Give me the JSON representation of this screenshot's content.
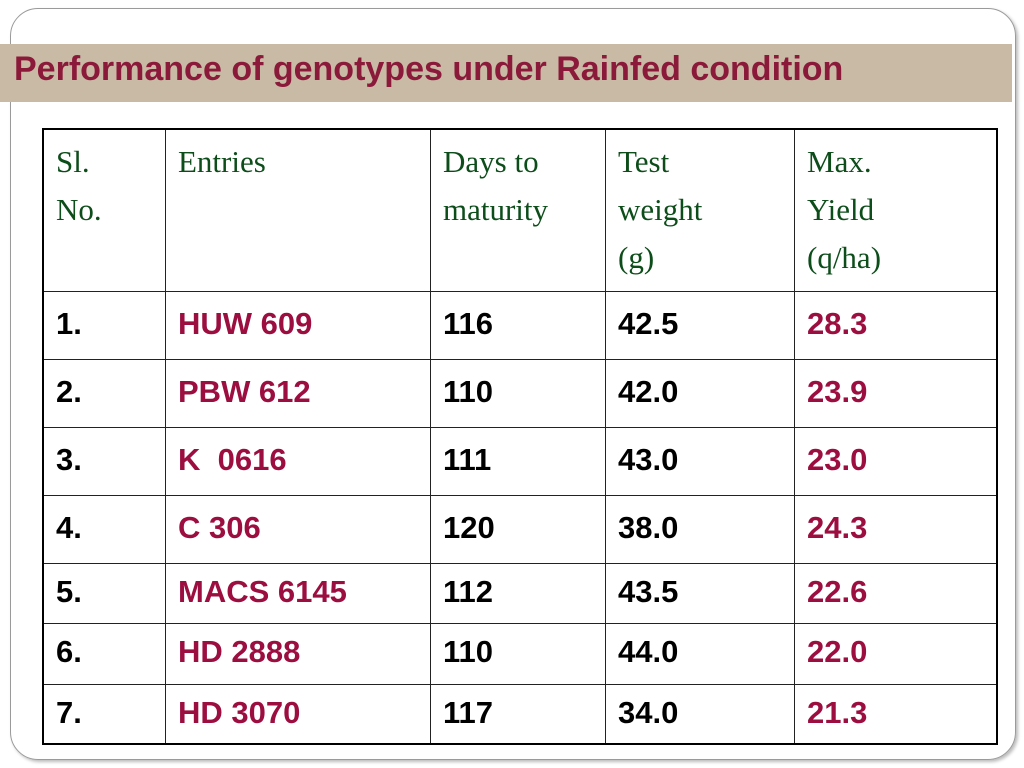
{
  "title": "Performance of genotypes under Rainfed condition",
  "table": {
    "header": [
      [
        "Sl.",
        "No."
      ],
      [
        "Entries"
      ],
      [
        "Days to",
        "maturity"
      ],
      [
        "Test",
        "weight",
        "(g)"
      ],
      [
        "Max.",
        "Yield",
        "(q/ha)"
      ]
    ],
    "rows": [
      [
        "1.",
        "HUW 609",
        "116",
        "42.5",
        "28.3"
      ],
      [
        "2.",
        "PBW 612",
        "110",
        "42.0",
        "23.9"
      ],
      [
        "3.",
        "K  0616",
        "111",
        "43.0",
        "23.0"
      ],
      [
        "4.",
        "C 306",
        "120",
        "38.0",
        "24.3"
      ],
      [
        "5.",
        "MACS 6145",
        "112",
        "43.5",
        "22.6"
      ],
      [
        "6.",
        "HD 2888",
        "110",
        "44.0",
        "22.0"
      ],
      [
        "7.",
        "HD 3070",
        "117",
        "34.0",
        "21.3"
      ]
    ]
  }
}
